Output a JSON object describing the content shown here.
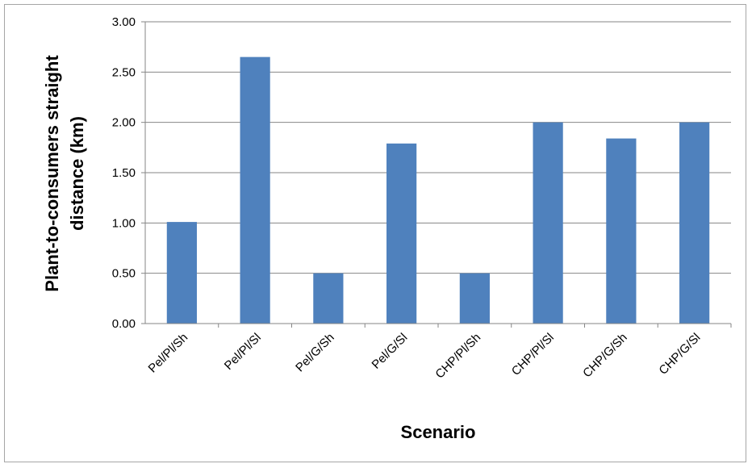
{
  "chart_data": {
    "type": "bar",
    "title": "",
    "xlabel": "Scenario",
    "ylabel_line1": "Plant-to-consumers straight",
    "ylabel_line2": "distance (km)",
    "categories": [
      "Pel/Pl/Sh",
      "Pel/Pl/Sl",
      "Pel/G/Sh",
      "Pel/G/Sl",
      "CHP/Pl/Sh",
      "CHP/Pl/Sl",
      "CHP/G/Sh",
      "CHP/G/Sl"
    ],
    "values": [
      1.01,
      2.65,
      0.5,
      1.79,
      0.5,
      2.0,
      1.84,
      2.0
    ],
    "ylim": [
      0,
      3
    ],
    "yticks": [
      "0.00",
      "0.50",
      "1.00",
      "1.50",
      "2.00",
      "2.50",
      "3.00"
    ],
    "grid": true,
    "legend": "none",
    "bar_color": "#4f81bd",
    "grid_color": "#868686"
  }
}
